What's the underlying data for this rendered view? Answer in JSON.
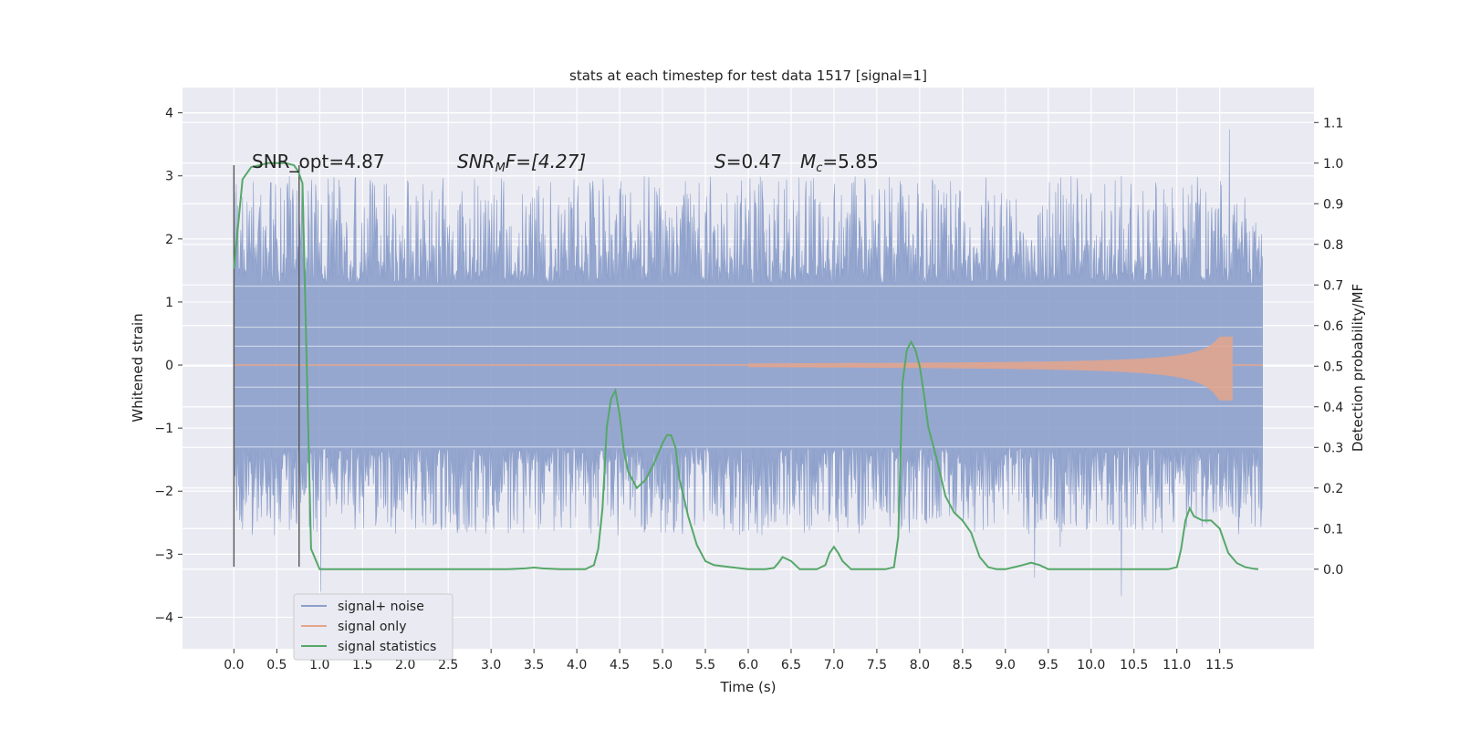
{
  "chart_data": {
    "type": "line",
    "title": "stats at each timestep for test data 1517 [signal=1]",
    "xlabel": "Time (s)",
    "ylabel_left": "Whitened strain",
    "ylabel_right": "Detection probability/MF",
    "xlim": [
      -0.6,
      12.6
    ],
    "ylim_left": [
      -4.5,
      4.4
    ],
    "ylim_right": [
      -0.196,
      1.186
    ],
    "x_ticks": [
      "0.0",
      "0.5",
      "1.0",
      "1.5",
      "2.0",
      "2.5",
      "3.0",
      "3.5",
      "4.0",
      "4.5",
      "5.0",
      "5.5",
      "6.0",
      "6.5",
      "7.0",
      "7.5",
      "8.0",
      "8.5",
      "9.0",
      "9.5",
      "10.0",
      "10.5",
      "11.0",
      "11.5"
    ],
    "y_ticks_left": [
      "−4",
      "−3",
      "−2",
      "−1",
      "0",
      "1",
      "2",
      "3",
      "4"
    ],
    "y_ticks_right": [
      "0.0",
      "0.1",
      "0.2",
      "0.3",
      "0.4",
      "0.5",
      "0.6",
      "0.7",
      "0.8",
      "0.9",
      "1.0",
      "1.1"
    ],
    "grid": true,
    "legend_position": "lower-left",
    "colors": {
      "noise": "#8da0cb",
      "signal": "#e5a58a",
      "stats": "#55a868",
      "background": "#eaeaf2",
      "marker": "#555555"
    },
    "annotations": {
      "snr_opt": "SNR_opt=4.87",
      "snr_mf_prefix": "SNR",
      "snr_mf_sub": "M",
      "snr_mf_suffix": "F=[4.27]",
      "s_prefix": "S",
      "s_value": "=0.47",
      "mc_prefix": "M",
      "mc_sub": "c",
      "mc_value": "=5.85"
    },
    "markers_x": [
      0.0,
      0.76
    ],
    "series": [
      {
        "name": "signal+ noise",
        "kind": "noise",
        "duration": 12.0,
        "core_amplitude": 1.3
      },
      {
        "name": "signal only",
        "kind": "chirp",
        "start": 6.0,
        "merger": 11.65,
        "peak_amplitude": 0.45
      },
      {
        "name": "signal statistics",
        "x": [
          0.0,
          0.05,
          0.1,
          0.2,
          0.4,
          0.6,
          0.7,
          0.75,
          0.8,
          0.85,
          0.9,
          1.0,
          1.5,
          2.0,
          2.5,
          3.0,
          3.2,
          3.4,
          3.5,
          3.6,
          3.8,
          4.0,
          4.1,
          4.2,
          4.25,
          4.3,
          4.35,
          4.4,
          4.45,
          4.5,
          4.55,
          4.6,
          4.7,
          4.8,
          4.9,
          5.0,
          5.05,
          5.1,
          5.15,
          5.2,
          5.3,
          5.4,
          5.5,
          5.6,
          5.8,
          6.0,
          6.2,
          6.3,
          6.35,
          6.4,
          6.5,
          6.6,
          6.8,
          6.9,
          6.95,
          7.0,
          7.05,
          7.1,
          7.2,
          7.3,
          7.5,
          7.6,
          7.7,
          7.75,
          7.8,
          7.85,
          7.9,
          7.95,
          8.0,
          8.05,
          8.1,
          8.2,
          8.3,
          8.4,
          8.5,
          8.6,
          8.7,
          8.8,
          8.9,
          9.0,
          9.1,
          9.2,
          9.3,
          9.4,
          9.5,
          10.0,
          10.5,
          10.8,
          10.9,
          11.0,
          11.05,
          11.1,
          11.15,
          11.2,
          11.3,
          11.4,
          11.5,
          11.6,
          11.7,
          11.8,
          11.9,
          11.95
        ],
        "y": [
          0.74,
          0.85,
          0.96,
          0.99,
          1.0,
          1.0,
          0.995,
          0.98,
          0.95,
          0.5,
          0.05,
          0.0,
          0.0,
          0.0,
          0.0,
          0.0,
          0.0,
          0.002,
          0.004,
          0.002,
          0.0,
          0.0,
          0.0,
          0.01,
          0.05,
          0.15,
          0.35,
          0.42,
          0.44,
          0.38,
          0.29,
          0.24,
          0.2,
          0.22,
          0.26,
          0.31,
          0.33,
          0.33,
          0.3,
          0.22,
          0.13,
          0.06,
          0.02,
          0.01,
          0.005,
          0.0,
          0.0,
          0.003,
          0.015,
          0.03,
          0.02,
          0.0,
          0.0,
          0.01,
          0.04,
          0.055,
          0.04,
          0.02,
          0.0,
          0.0,
          0.0,
          0.0,
          0.005,
          0.08,
          0.46,
          0.54,
          0.56,
          0.54,
          0.5,
          0.43,
          0.35,
          0.27,
          0.18,
          0.14,
          0.12,
          0.09,
          0.03,
          0.005,
          0.0,
          0.0,
          0.005,
          0.01,
          0.016,
          0.01,
          0.0,
          0.0,
          0.0,
          0.0,
          0.0,
          0.005,
          0.05,
          0.12,
          0.15,
          0.13,
          0.12,
          0.12,
          0.1,
          0.04,
          0.015,
          0.005,
          0.001,
          0.0
        ]
      }
    ]
  }
}
